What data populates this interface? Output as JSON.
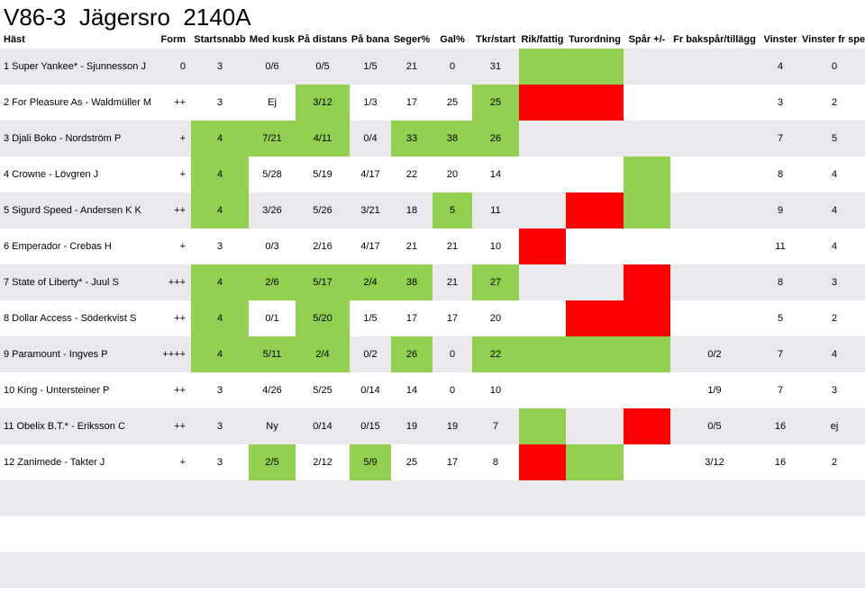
{
  "title": "V86-3  Jägersro  2140A",
  "headers": [
    "Häst",
    "Form",
    "Startsnabb",
    "Med kusk",
    "På distans",
    "På bana",
    "Seger%",
    "Gal%",
    "Tkr/start",
    "Rik/fattig",
    "Turordning",
    "Spår +/-",
    "Fr bakspår/tillägg",
    "Vinster",
    "Vinster fr spets"
  ],
  "rows": [
    {
      "cells": [
        "1 Super Yankee* - Sjunnesson J",
        "0",
        "3",
        "0/6",
        "0/5",
        "1/5",
        "21",
        "0",
        "31",
        "",
        "",
        "",
        "",
        "4",
        "0"
      ],
      "colors": [
        "",
        "",
        "",
        "",
        "",
        "",
        "",
        "",
        "",
        "g",
        "g",
        "",
        "",
        "",
        ""
      ]
    },
    {
      "cells": [
        "2 For Pleasure As - Waldmüller M",
        "++",
        "3",
        "Ej",
        "3/12",
        "1/3",
        "17",
        "25",
        "25",
        "",
        "",
        "",
        "",
        "3",
        "2"
      ],
      "colors": [
        "",
        "",
        "",
        "",
        "g",
        "",
        "",
        "",
        "g",
        "r",
        "r",
        "",
        "",
        "",
        ""
      ]
    },
    {
      "cells": [
        "3 Djali Boko - Nordström P",
        "+",
        "4",
        "7/21",
        "4/11",
        "0/4",
        "33",
        "38",
        "26",
        "",
        "",
        "",
        "",
        "7",
        "5"
      ],
      "colors": [
        "",
        "",
        "g",
        "g",
        "g",
        "",
        "g",
        "g",
        "g",
        "",
        "",
        "",
        "",
        "",
        ""
      ]
    },
    {
      "cells": [
        "4 Crowne - Lövgren J",
        "+",
        "4",
        "5/28",
        "5/19",
        "4/17",
        "22",
        "20",
        "14",
        "",
        "",
        "",
        "",
        "8",
        "4"
      ],
      "colors": [
        "",
        "",
        "g",
        "",
        "",
        "",
        "",
        "",
        "",
        "",
        "",
        "g",
        "",
        "",
        ""
      ]
    },
    {
      "cells": [
        "5 Sigurd Speed - Andersen K K",
        "++",
        "4",
        "3/26",
        "5/26",
        "3/21",
        "18",
        "5",
        "11",
        "",
        "",
        "",
        "",
        "9",
        "4"
      ],
      "colors": [
        "",
        "",
        "g",
        "",
        "",
        "",
        "",
        "g",
        "",
        "",
        "r",
        "g",
        "",
        "",
        ""
      ]
    },
    {
      "cells": [
        "6 Emperador - Crebas H",
        "+",
        "3",
        "0/3",
        "2/16",
        "4/17",
        "21",
        "21",
        "10",
        "",
        "",
        "",
        "",
        "11",
        "4"
      ],
      "colors": [
        "",
        "",
        "",
        "",
        "",
        "",
        "",
        "",
        "",
        "r",
        "",
        "",
        "",
        "",
        ""
      ]
    },
    {
      "cells": [
        "7 State of Liberty* - Juul S",
        "+++",
        "4",
        "2/6",
        "5/17",
        "2/4",
        "38",
        "21",
        "27",
        "",
        "",
        "",
        "",
        "8",
        "3"
      ],
      "colors": [
        "",
        "",
        "g",
        "g",
        "g",
        "g",
        "g",
        "",
        "g",
        "",
        "",
        "r",
        "",
        "",
        ""
      ]
    },
    {
      "cells": [
        "8 Dollar Access - Söderkvist S",
        "++",
        "4",
        "0/1",
        "5/20",
        "1/5",
        "17",
        "17",
        "20",
        "",
        "",
        "",
        "",
        "5",
        "2"
      ],
      "colors": [
        "",
        "",
        "g",
        "",
        "g",
        "",
        "",
        "",
        "",
        "",
        "r",
        "r",
        "",
        "",
        ""
      ]
    },
    {
      "cells": [
        "9 Paramount - Ingves P",
        "++++",
        "4",
        "5/11",
        "2/4",
        "0/2",
        "26",
        "0",
        "22",
        "",
        "",
        "",
        "0/2",
        "7",
        "4"
      ],
      "colors": [
        "",
        "",
        "g",
        "g",
        "g",
        "",
        "g",
        "",
        "g",
        "g",
        "g",
        "g",
        "",
        "",
        ""
      ]
    },
    {
      "cells": [
        "10 King - Untersteiner P",
        "++",
        "3",
        "4/26",
        "5/25",
        "0/14",
        "14",
        "0",
        "10",
        "",
        "",
        "",
        "1/9",
        "7",
        "3"
      ],
      "colors": [
        "",
        "",
        "",
        "",
        "",
        "",
        "",
        "",
        "",
        "",
        "",
        "",
        "",
        "",
        ""
      ]
    },
    {
      "cells": [
        "11 Obelix B.T.* - Eriksson C",
        "++",
        "3",
        "Ny",
        "0/14",
        "0/15",
        "19",
        "19",
        "7",
        "",
        "",
        "",
        "0/5",
        "16",
        "ej"
      ],
      "colors": [
        "",
        "",
        "",
        "",
        "",
        "",
        "",
        "",
        "",
        "g",
        "",
        "r",
        "",
        "",
        ""
      ]
    },
    {
      "cells": [
        "12 Zanimede - Takter J",
        "+",
        "3",
        "2/5",
        "2/12",
        "5/9",
        "25",
        "17",
        "8",
        "",
        "",
        "",
        "3/12",
        "16",
        "2"
      ],
      "colors": [
        "",
        "",
        "",
        "g",
        "",
        "g",
        "",
        "",
        "",
        "r",
        "g",
        "",
        "",
        "",
        ""
      ]
    }
  ]
}
